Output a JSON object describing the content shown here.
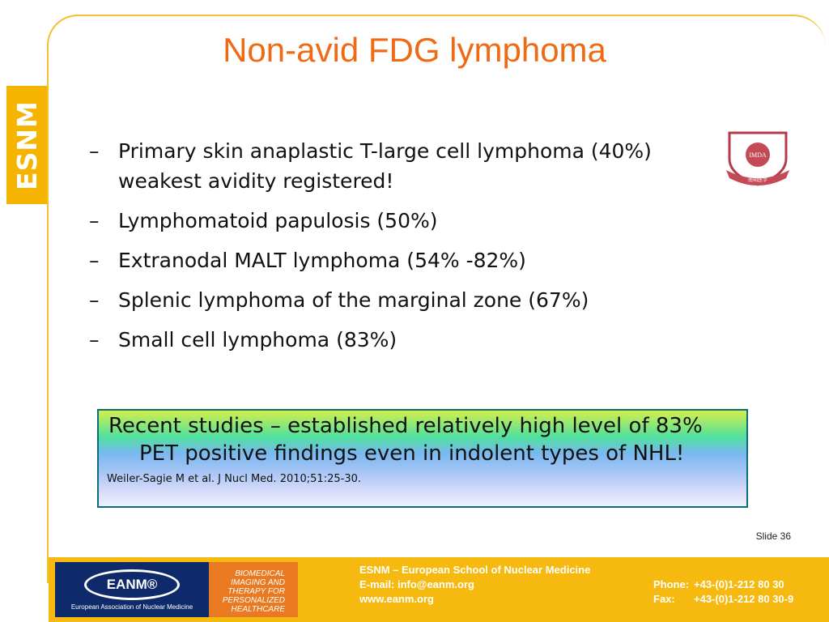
{
  "side_tab": {
    "text": "ESNM"
  },
  "title": "Non-avid FDG lymphoma",
  "bullets": [
    {
      "dash": "–",
      "text": "Primary skin anaplastic T-large cell lymphoma (40%) weakest avidity registered!"
    },
    {
      "dash": "–",
      "text": "Lymphomatoid papulosis (50%)"
    },
    {
      "dash": "–",
      "text": "Extranodal MALT lymphoma (54% -82%)"
    },
    {
      "dash": "–",
      "text": "Splenic lymphoma of the marginal zone (67%)"
    },
    {
      "dash": "–",
      "text": "Small cell lymphoma (83%)"
    }
  ],
  "logo": {
    "text": "IMDA",
    "ribbon": "南朔医学"
  },
  "note": {
    "line1": "Recent studies – established relatively high level of 83%",
    "line2": "PET positive findings  even in indolent types of NHL!",
    "citation": "Weiler-Sagie M  et al. J Nucl Med. 2010;51:25-30."
  },
  "slide_number": "Slide 36",
  "footer": {
    "eanm_logo": "EANM®",
    "eanm_subtitle": "European Association of Nuclear Medicine",
    "biomedical": [
      "BIOMEDICAL",
      "IMAGING AND",
      "THERAPY FOR",
      "PERSONALIZED",
      "HEALTHCARE"
    ],
    "school": "ESNM – European School of Nuclear Medicine",
    "email": "E-mail: info@eanm.org",
    "website": "www.eanm.org",
    "phone_label": "Phone:",
    "phone": "+43-(0)1-212 80 30",
    "fax_label": "Fax:",
    "fax": "+43-(0)1-212 80 30-9"
  },
  "colors": {
    "accent": "#f5b400",
    "title": "#f06a14",
    "box_border": "#0b6d7a",
    "eanm_blue": "#0f2a6b",
    "biomed_orange": "#e97a21"
  }
}
